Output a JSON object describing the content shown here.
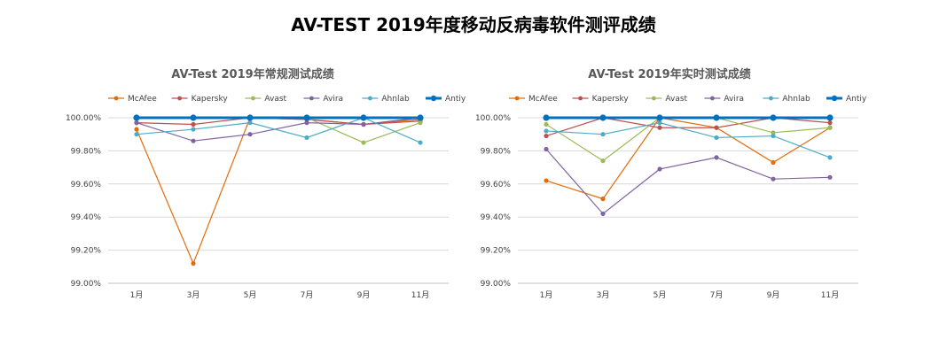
{
  "title": "AV-TEST 2019年度移动反病毒软件测评成绩",
  "chart_data": [
    {
      "type": "line",
      "title": "AV-Test 2019年常规测试成绩",
      "categories": [
        "1月",
        "3月",
        "5月",
        "7月",
        "9月",
        "11月"
      ],
      "ylim": [
        99.0,
        100.0
      ],
      "yticks": [
        "99.00%",
        "99.20%",
        "99.40%",
        "99.60%",
        "99.80%",
        "100.00%"
      ],
      "grid": true,
      "legend": "top",
      "series": [
        {
          "name": "McAfee",
          "color": "#E36C0A",
          "values": [
            99.93,
            99.12,
            100.0,
            99.99,
            99.96,
            99.99
          ]
        },
        {
          "name": "Kapersky",
          "color": "#C0504D",
          "values": [
            99.97,
            99.96,
            100.0,
            99.99,
            99.96,
            99.98
          ]
        },
        {
          "name": "Avast",
          "color": "#9BBB59",
          "values": [
            100.0,
            100.0,
            100.0,
            100.0,
            99.85,
            99.97
          ]
        },
        {
          "name": "Avira",
          "color": "#8064A2",
          "values": [
            99.97,
            99.86,
            99.9,
            99.97,
            99.96,
            100.0
          ]
        },
        {
          "name": "Ahnlab",
          "color": "#4BACC6",
          "values": [
            99.9,
            99.93,
            99.97,
            99.88,
            100.0,
            99.85
          ]
        },
        {
          "name": "Antiy",
          "color": "#0070C0",
          "values": [
            100.0,
            100.0,
            100.0,
            100.0,
            100.0,
            100.0
          ]
        }
      ]
    },
    {
      "type": "line",
      "title": "AV-Test 2019年实时测试成绩",
      "categories": [
        "1月",
        "3月",
        "5月",
        "7月",
        "9月",
        "11月"
      ],
      "ylim": [
        99.0,
        100.0
      ],
      "yticks": [
        "99.00%",
        "99.20%",
        "99.40%",
        "99.60%",
        "99.80%",
        "100.00%"
      ],
      "grid": true,
      "legend": "top",
      "series": [
        {
          "name": "McAfee",
          "color": "#E36C0A",
          "values": [
            99.62,
            99.51,
            100.0,
            99.94,
            99.73,
            99.94
          ]
        },
        {
          "name": "Kapersky",
          "color": "#C0504D",
          "values": [
            99.89,
            100.0,
            99.94,
            99.94,
            100.0,
            99.97
          ]
        },
        {
          "name": "Avast",
          "color": "#9BBB59",
          "values": [
            99.96,
            99.74,
            100.0,
            100.0,
            99.91,
            99.94
          ]
        },
        {
          "name": "Avira",
          "color": "#8064A2",
          "values": [
            99.81,
            99.42,
            99.69,
            99.76,
            99.63,
            99.64
          ]
        },
        {
          "name": "Ahnlab",
          "color": "#4BACC6",
          "values": [
            99.92,
            99.9,
            99.97,
            99.88,
            99.89,
            99.76
          ]
        },
        {
          "name": "Antiy",
          "color": "#0070C0",
          "values": [
            100.0,
            100.0,
            100.0,
            100.0,
            100.0,
            100.0
          ]
        }
      ]
    }
  ]
}
